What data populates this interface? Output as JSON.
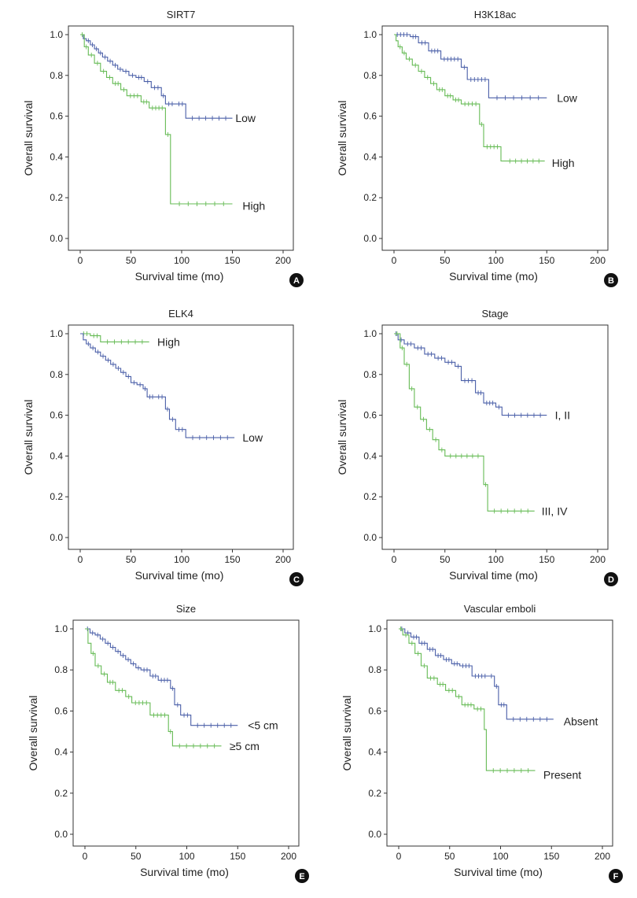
{
  "colors": {
    "low": "#4a5fa8",
    "high": "#66bb55",
    "badge": "#111111",
    "axis": "#333333"
  },
  "chart_data": [
    {
      "type": "line",
      "panel": "A",
      "title": "SIRT7",
      "xlabel": "Survival time (mo)",
      "ylabel": "Overall survival",
      "xlim": [
        0,
        200
      ],
      "ylim": [
        0,
        1
      ],
      "xticks": [
        "0",
        "50",
        "100",
        "150",
        "200"
      ],
      "yticks": [
        "0.0",
        "0.2",
        "0.4",
        "0.6",
        "0.8",
        "1.0"
      ],
      "series": [
        {
          "name": "Low",
          "color": "#4a5fa8",
          "label_at": [
            153,
            0.59
          ],
          "x": [
            0,
            3,
            6,
            10,
            14,
            18,
            22,
            27,
            32,
            37,
            42,
            48,
            55,
            63,
            70,
            80,
            84,
            94,
            104,
            150
          ],
          "y": [
            1.0,
            0.98,
            0.97,
            0.95,
            0.93,
            0.91,
            0.89,
            0.87,
            0.85,
            0.83,
            0.82,
            0.8,
            0.79,
            0.77,
            0.74,
            0.7,
            0.66,
            0.66,
            0.59,
            0.59
          ]
        },
        {
          "name": "High",
          "color": "#66bb55",
          "label_at": [
            160,
            0.16
          ],
          "x": [
            0,
            4,
            8,
            14,
            20,
            26,
            32,
            40,
            46,
            60,
            68,
            84,
            89,
            150
          ],
          "y": [
            1.0,
            0.94,
            0.9,
            0.86,
            0.82,
            0.79,
            0.76,
            0.73,
            0.7,
            0.67,
            0.64,
            0.51,
            0.17,
            0.17
          ]
        }
      ]
    },
    {
      "type": "line",
      "panel": "B",
      "title": "H3K18ac",
      "xlabel": "Survival time (mo)",
      "ylabel": "Overall survival",
      "xlim": [
        0,
        200
      ],
      "ylim": [
        0,
        1
      ],
      "xticks": [
        "0",
        "50",
        "100",
        "150",
        "200"
      ],
      "yticks": [
        "0.0",
        "0.2",
        "0.4",
        "0.6",
        "0.8",
        "1.0"
      ],
      "series": [
        {
          "name": "Low",
          "color": "#4a5fa8",
          "label_at": [
            160,
            0.69
          ],
          "x": [
            0,
            16,
            24,
            34,
            46,
            66,
            72,
            93,
            150
          ],
          "y": [
            1.0,
            0.99,
            0.96,
            0.92,
            0.88,
            0.84,
            0.78,
            0.69,
            0.69
          ]
        },
        {
          "name": "High",
          "color": "#66bb55",
          "label_at": [
            155,
            0.37
          ],
          "x": [
            0,
            2,
            4,
            8,
            12,
            18,
            24,
            30,
            36,
            42,
            50,
            58,
            66,
            84,
            88,
            105,
            108,
            148
          ],
          "y": [
            1.0,
            0.97,
            0.94,
            0.91,
            0.88,
            0.85,
            0.82,
            0.79,
            0.76,
            0.73,
            0.7,
            0.68,
            0.66,
            0.56,
            0.45,
            0.38,
            0.38,
            0.38
          ]
        }
      ]
    },
    {
      "type": "line",
      "panel": "C",
      "title": "ELK4",
      "xlabel": "Survival time (mo)",
      "ylabel": "Overall survival",
      "xlim": [
        0,
        200
      ],
      "ylim": [
        0,
        1
      ],
      "xticks": [
        "0",
        "50",
        "100",
        "150",
        "200"
      ],
      "yticks": [
        "0.0",
        "0.2",
        "0.4",
        "0.6",
        "0.8",
        "1.0"
      ],
      "series": [
        {
          "name": "High",
          "color": "#66bb55",
          "label_at": [
            76,
            0.96
          ],
          "x": [
            0,
            10,
            20,
            68
          ],
          "y": [
            1.0,
            0.99,
            0.96,
            0.96
          ]
        },
        {
          "name": "Low",
          "color": "#4a5fa8",
          "label_at": [
            160,
            0.49
          ],
          "x": [
            0,
            3,
            6,
            10,
            15,
            20,
            25,
            30,
            35,
            40,
            45,
            50,
            56,
            62,
            66,
            74,
            84,
            88,
            94,
            104,
            152
          ],
          "y": [
            1.0,
            0.97,
            0.95,
            0.93,
            0.91,
            0.89,
            0.87,
            0.85,
            0.83,
            0.81,
            0.79,
            0.76,
            0.75,
            0.73,
            0.69,
            0.69,
            0.63,
            0.58,
            0.53,
            0.49,
            0.49
          ]
        }
      ]
    },
    {
      "type": "line",
      "panel": "D",
      "title": "Stage",
      "xlabel": "Survival time (mo)",
      "ylabel": "Overall survival",
      "xlim": [
        0,
        200
      ],
      "ylim": [
        0,
        1
      ],
      "xticks": [
        "0",
        "50",
        "100",
        "150",
        "200"
      ],
      "yticks": [
        "0.0",
        "0.2",
        "0.4",
        "0.6",
        "0.8",
        "1.0"
      ],
      "series": [
        {
          "name": "I, II",
          "color": "#4a5fa8",
          "label_at": [
            158,
            0.6
          ],
          "x": [
            0,
            4,
            10,
            20,
            30,
            40,
            50,
            60,
            66,
            80,
            88,
            100,
            106,
            150
          ],
          "y": [
            1.0,
            0.97,
            0.95,
            0.93,
            0.9,
            0.88,
            0.86,
            0.84,
            0.77,
            0.71,
            0.66,
            0.64,
            0.6,
            0.6
          ]
        },
        {
          "name": "III, IV",
          "color": "#66bb55",
          "label_at": [
            145,
            0.13
          ],
          "x": [
            0,
            6,
            10,
            15,
            20,
            26,
            32,
            38,
            44,
            50,
            88,
            92,
            138
          ],
          "y": [
            1.0,
            0.93,
            0.85,
            0.73,
            0.64,
            0.58,
            0.53,
            0.48,
            0.43,
            0.4,
            0.26,
            0.13,
            0.13
          ]
        }
      ]
    },
    {
      "type": "line",
      "panel": "E",
      "title": "Size",
      "xlabel": "Survival time (mo)",
      "ylabel": "Overall survival",
      "xlim": [
        0,
        200
      ],
      "ylim": [
        0,
        1
      ],
      "xticks": [
        "0",
        "50",
        "100",
        "150",
        "200"
      ],
      "yticks": [
        "0.0",
        "0.2",
        "0.4",
        "0.6",
        "0.8",
        "1.0"
      ],
      "series": [
        {
          "name": "<5 cm",
          "color": "#4a5fa8",
          "label_at": [
            160,
            0.53
          ],
          "x": [
            0,
            5,
            10,
            15,
            20,
            25,
            30,
            35,
            40,
            45,
            50,
            55,
            64,
            72,
            84,
            88,
            94,
            104,
            150
          ],
          "y": [
            1.0,
            0.98,
            0.97,
            0.95,
            0.93,
            0.91,
            0.89,
            0.87,
            0.85,
            0.83,
            0.81,
            0.8,
            0.77,
            0.75,
            0.71,
            0.63,
            0.58,
            0.53,
            0.53
          ]
        },
        {
          "name": "≥5 cm",
          "color": "#66bb55",
          "label_at": [
            142,
            0.43
          ],
          "x": [
            0,
            3,
            6,
            10,
            16,
            22,
            30,
            40,
            46,
            64,
            82,
            86,
            134
          ],
          "y": [
            1.0,
            0.93,
            0.88,
            0.82,
            0.78,
            0.74,
            0.7,
            0.67,
            0.64,
            0.58,
            0.5,
            0.43,
            0.43
          ]
        }
      ]
    },
    {
      "type": "line",
      "panel": "F",
      "title": "Vascular emboli",
      "xlabel": "Survival time (mo)",
      "ylabel": "Overall survival",
      "xlim": [
        0,
        200
      ],
      "ylim": [
        0,
        1
      ],
      "xticks": [
        "0",
        "50",
        "100",
        "150",
        "200"
      ],
      "yticks": [
        "0.0",
        "0.2",
        "0.4",
        "0.6",
        "0.8",
        "1.0"
      ],
      "series": [
        {
          "name": "Absent",
          "color": "#4a5fa8",
          "label_at": [
            162,
            0.55
          ],
          "x": [
            0,
            6,
            12,
            20,
            28,
            36,
            44,
            52,
            60,
            72,
            88,
            94,
            98,
            106,
            152
          ],
          "y": [
            1.0,
            0.98,
            0.96,
            0.93,
            0.9,
            0.87,
            0.85,
            0.83,
            0.82,
            0.77,
            0.77,
            0.72,
            0.63,
            0.56,
            0.56
          ]
        },
        {
          "name": "Present",
          "color": "#66bb55",
          "label_at": [
            142,
            0.29
          ],
          "x": [
            0,
            4,
            10,
            16,
            22,
            28,
            38,
            46,
            56,
            62,
            74,
            84,
            86,
            134
          ],
          "y": [
            1.0,
            0.97,
            0.93,
            0.88,
            0.82,
            0.76,
            0.73,
            0.7,
            0.67,
            0.63,
            0.61,
            0.51,
            0.31,
            0.31
          ]
        }
      ]
    }
  ]
}
